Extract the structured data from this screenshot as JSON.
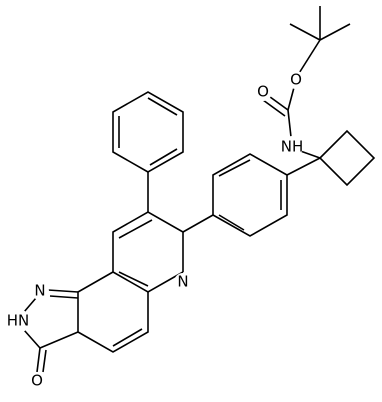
{
  "atoms": [
    "O",
    "O",
    "NH",
    "N",
    "N",
    "HN",
    "O"
  ]
}
